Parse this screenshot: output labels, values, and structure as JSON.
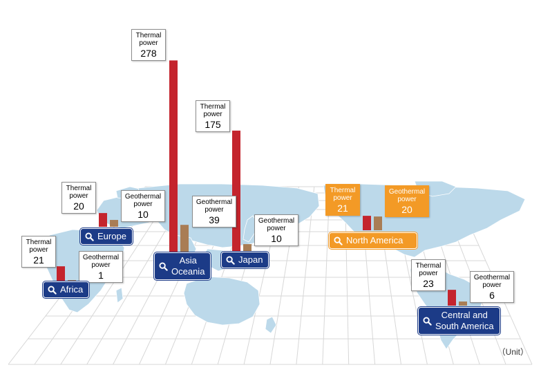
{
  "chart_data": {
    "type": "bar",
    "categories": [
      "Africa",
      "Europe",
      "Asia Oceania",
      "Japan",
      "North America",
      "Central and South America"
    ],
    "series": [
      {
        "name": "Thermal power",
        "values": [
          21,
          20,
          278,
          175,
          21,
          23
        ]
      },
      {
        "name": "Geothermal power",
        "values": [
          1,
          10,
          39,
          10,
          20,
          6
        ]
      }
    ],
    "unit_label": "（Unit）",
    "highlighted_region": "North America"
  },
  "labels": {
    "thermal": "Thermal\npower",
    "geothermal": "Geothermal\npower"
  },
  "regions": [
    {
      "name": "Africa",
      "button": "Africa"
    },
    {
      "name": "Europe",
      "button": "Europe"
    },
    {
      "name": "Asia Oceania",
      "button": "Asia\nOceania"
    },
    {
      "name": "Japan",
      "button": "Japan"
    },
    {
      "name": "North America",
      "button": "North America"
    },
    {
      "name": "Central and South America",
      "button": "Central and\nSouth America"
    }
  ],
  "colors": {
    "thermal_bar": "#c4242d",
    "geothermal_bar": "#a97d55",
    "region_button": "#1c3b87",
    "highlight": "#f39a26",
    "land": "#bcd9ea",
    "grid": "#d7d7d7"
  },
  "icons": {
    "region_button_icon": "search-icon"
  }
}
